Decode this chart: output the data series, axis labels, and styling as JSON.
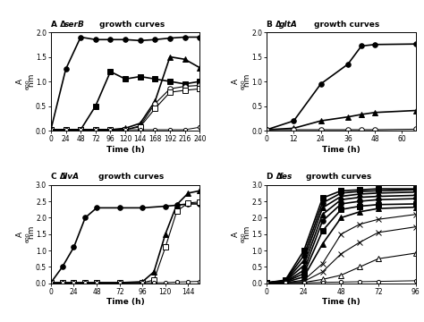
{
  "panel_A": {
    "letter": "A",
    "gene": "serB",
    "rest": " growth curves",
    "xlabel": "Time (h)",
    "ylabel": "A",
    "ylabel_sub": "600",
    "ylabel_rest": " nm",
    "xlim": [
      0,
      240
    ],
    "ylim": [
      0,
      2.0
    ],
    "yticks": [
      0.0,
      0.5,
      1.0,
      1.5,
      2.0
    ],
    "xticks": [
      0,
      24,
      48,
      72,
      96,
      120,
      144,
      168,
      192,
      216,
      240
    ],
    "series": [
      {
        "x": [
          0,
          24,
          48,
          72,
          96,
          120,
          144,
          168,
          192,
          216,
          240
        ],
        "y": [
          0.02,
          1.25,
          1.9,
          1.85,
          1.85,
          1.85,
          1.83,
          1.85,
          1.88,
          1.9,
          1.9
        ],
        "marker": "o",
        "ms": 4,
        "filled": true,
        "lw": 1.2
      },
      {
        "x": [
          0,
          24,
          48,
          72,
          96,
          120,
          144,
          168,
          192,
          216,
          240
        ],
        "y": [
          0.02,
          0.02,
          0.02,
          0.5,
          1.2,
          1.05,
          1.1,
          1.05,
          1.0,
          0.95,
          1.0
        ],
        "marker": "s",
        "ms": 4,
        "filled": true,
        "lw": 1.2
      },
      {
        "x": [
          0,
          24,
          48,
          72,
          96,
          120,
          144,
          168,
          192,
          216,
          240
        ],
        "y": [
          0.02,
          0.02,
          0.02,
          0.02,
          0.02,
          0.05,
          0.15,
          0.6,
          1.5,
          1.45,
          1.28
        ],
        "marker": "^",
        "ms": 4,
        "filled": true,
        "lw": 1.2
      },
      {
        "x": [
          0,
          24,
          48,
          72,
          96,
          120,
          144,
          168,
          192,
          216,
          240
        ],
        "y": [
          0.02,
          0.02,
          0.02,
          0.02,
          0.02,
          0.02,
          0.1,
          0.55,
          0.85,
          0.9,
          0.92
        ],
        "marker": "o",
        "ms": 4,
        "filled": false,
        "lw": 0.8
      },
      {
        "x": [
          0,
          24,
          48,
          72,
          96,
          120,
          144,
          168,
          192,
          216,
          240
        ],
        "y": [
          0.02,
          0.02,
          0.02,
          0.02,
          0.02,
          0.02,
          0.08,
          0.45,
          0.78,
          0.82,
          0.85
        ],
        "marker": "s",
        "ms": 4,
        "filled": false,
        "lw": 0.8
      },
      {
        "x": [
          0,
          24,
          48,
          72,
          96,
          120,
          144,
          168,
          192,
          216,
          240
        ],
        "y": [
          0.02,
          0.02,
          0.02,
          0.02,
          0.02,
          0.02,
          0.02,
          0.02,
          0.02,
          0.02,
          0.07
        ],
        "marker": "o",
        "ms": 3,
        "filled": false,
        "lw": 0.7
      }
    ]
  },
  "panel_B": {
    "letter": "B",
    "gene": "gltA",
    "rest": " growth curves",
    "xlabel": "Time (h)",
    "ylabel": "A",
    "ylabel_sub": "600",
    "ylabel_rest": " nm",
    "xlim": [
      0,
      66
    ],
    "ylim": [
      0,
      2.0
    ],
    "yticks": [
      0.0,
      0.5,
      1.0,
      1.5,
      2.0
    ],
    "xticks": [
      0,
      12,
      24,
      36,
      48,
      60
    ],
    "series": [
      {
        "x": [
          0,
          12,
          24,
          36,
          42,
          48,
          66
        ],
        "y": [
          0.02,
          0.2,
          0.95,
          1.35,
          1.72,
          1.75,
          1.76
        ],
        "marker": "o",
        "ms": 4,
        "filled": true,
        "lw": 1.2
      },
      {
        "x": [
          0,
          12,
          24,
          36,
          42,
          48,
          66
        ],
        "y": [
          0.02,
          0.05,
          0.2,
          0.28,
          0.33,
          0.37,
          0.41
        ],
        "marker": "^",
        "ms": 4,
        "filled": true,
        "lw": 1.2
      },
      {
        "x": [
          0,
          12,
          24,
          36,
          42,
          48,
          66
        ],
        "y": [
          0.02,
          0.02,
          0.02,
          0.02,
          0.02,
          0.02,
          0.03
        ],
        "marker": "o",
        "ms": 4,
        "filled": false,
        "lw": 0.8
      }
    ]
  },
  "panel_C": {
    "letter": "C",
    "gene": "ilvA",
    "rest": " growth curves",
    "xlabel": "Time (h)",
    "ylabel": "A",
    "ylabel_sub": "600",
    "ylabel_rest": " nm",
    "xlim": [
      0,
      156
    ],
    "ylim": [
      0,
      3.0
    ],
    "yticks": [
      0.0,
      0.5,
      1.0,
      1.5,
      2.0,
      2.5,
      3.0
    ],
    "xticks": [
      0,
      24,
      48,
      72,
      96,
      120,
      144
    ],
    "series": [
      {
        "x": [
          0,
          12,
          24,
          36,
          48,
          72,
          96,
          120,
          132,
          144,
          156
        ],
        "y": [
          0.02,
          0.5,
          1.1,
          2.0,
          2.3,
          2.3,
          2.3,
          2.35,
          2.38,
          2.42,
          2.42
        ],
        "marker": "o",
        "ms": 4,
        "filled": true,
        "lw": 1.2
      },
      {
        "x": [
          0,
          12,
          24,
          36,
          48,
          72,
          96,
          108,
          120,
          132,
          144,
          156
        ],
        "y": [
          0.02,
          0.02,
          0.02,
          0.02,
          0.02,
          0.02,
          0.05,
          0.35,
          1.5,
          2.4,
          2.75,
          2.82
        ],
        "marker": "^",
        "ms": 4,
        "filled": true,
        "lw": 1.2
      },
      {
        "x": [
          0,
          12,
          24,
          36,
          48,
          72,
          96,
          108,
          120,
          132,
          144,
          156
        ],
        "y": [
          0.02,
          0.02,
          0.02,
          0.02,
          0.02,
          0.02,
          0.02,
          0.1,
          1.1,
          2.2,
          2.45,
          2.48
        ],
        "marker": "s",
        "ms": 4,
        "filled": false,
        "lw": 0.8
      },
      {
        "x": [
          0,
          12,
          24,
          36,
          48,
          72,
          96,
          108,
          120,
          132,
          144,
          156
        ],
        "y": [
          0.02,
          0.02,
          0.02,
          0.02,
          0.02,
          0.02,
          0.02,
          0.02,
          0.02,
          0.04,
          0.05,
          0.06
        ],
        "marker": "o",
        "ms": 3,
        "filled": false,
        "lw": 0.7
      }
    ]
  },
  "panel_D": {
    "letter": "D",
    "gene": "fes",
    "rest": " growth curves",
    "xlabel": "Time (h)",
    "ylabel": "A",
    "ylabel_sub": "600",
    "ylabel_rest": " nm",
    "xlim": [
      0,
      96
    ],
    "ylim": [
      0,
      3.0
    ],
    "yticks": [
      0.0,
      0.5,
      1.0,
      1.5,
      2.0,
      2.5,
      3.0
    ],
    "xticks": [
      0,
      24,
      48,
      72,
      96
    ],
    "series": [
      {
        "x": [
          0,
          12,
          24,
          36,
          48,
          60,
          72,
          96
        ],
        "y": [
          0.02,
          0.1,
          1.0,
          2.6,
          2.82,
          2.85,
          2.88,
          2.88
        ],
        "marker": "s",
        "ms": 4,
        "filled": true,
        "lw": 1.2
      },
      {
        "x": [
          0,
          12,
          24,
          36,
          48,
          60,
          72,
          96
        ],
        "y": [
          0.02,
          0.08,
          0.85,
          2.45,
          2.75,
          2.8,
          2.82,
          2.85
        ],
        "marker": "o",
        "ms": 4,
        "filled": true,
        "lw": 1.2
      },
      {
        "x": [
          0,
          12,
          24,
          36,
          48,
          60,
          72,
          96
        ],
        "y": [
          0.02,
          0.07,
          0.7,
          2.3,
          2.65,
          2.72,
          2.75,
          2.78
        ],
        "marker": "^",
        "ms": 4,
        "filled": true,
        "lw": 1.2
      },
      {
        "x": [
          0,
          12,
          24,
          36,
          48,
          60,
          72,
          96
        ],
        "y": [
          0.02,
          0.06,
          0.55,
          2.1,
          2.55,
          2.62,
          2.65,
          2.68
        ],
        "marker": "^",
        "ms": 4,
        "filled": true,
        "lw": 1.2
      },
      {
        "x": [
          0,
          12,
          24,
          36,
          48,
          60,
          72,
          96
        ],
        "y": [
          0.02,
          0.05,
          0.4,
          1.9,
          2.42,
          2.5,
          2.55,
          2.58
        ],
        "marker": "o",
        "ms": 4,
        "filled": true,
        "lw": 1.2
      },
      {
        "x": [
          0,
          12,
          24,
          36,
          48,
          60,
          72,
          96
        ],
        "y": [
          0.02,
          0.04,
          0.3,
          1.6,
          2.25,
          2.35,
          2.4,
          2.42
        ],
        "marker": "s",
        "ms": 4,
        "filled": true,
        "lw": 1.2
      },
      {
        "x": [
          0,
          12,
          24,
          36,
          48,
          60,
          72,
          96
        ],
        "y": [
          0.02,
          0.03,
          0.2,
          1.2,
          2.0,
          2.18,
          2.28,
          2.32
        ],
        "marker": "^",
        "ms": 4,
        "filled": true,
        "lw": 1.2
      },
      {
        "x": [
          0,
          12,
          24,
          36,
          48,
          60,
          72,
          96
        ],
        "y": [
          0.02,
          0.02,
          0.1,
          0.6,
          1.5,
          1.8,
          1.95,
          2.1
        ],
        "marker": "x",
        "ms": 4,
        "filled": false,
        "lw": 0.8
      },
      {
        "x": [
          0,
          12,
          24,
          36,
          48,
          60,
          72,
          96
        ],
        "y": [
          0.02,
          0.02,
          0.06,
          0.35,
          0.9,
          1.25,
          1.55,
          1.72
        ],
        "marker": "x",
        "ms": 4,
        "filled": false,
        "lw": 0.8
      },
      {
        "x": [
          0,
          12,
          24,
          36,
          48,
          60,
          72,
          96
        ],
        "y": [
          0.02,
          0.02,
          0.03,
          0.12,
          0.25,
          0.5,
          0.75,
          0.92
        ],
        "marker": "^",
        "ms": 4,
        "filled": false,
        "lw": 0.8
      },
      {
        "x": [
          0,
          12,
          24,
          36,
          48,
          60,
          72,
          96
        ],
        "y": [
          0.02,
          0.02,
          0.02,
          0.03,
          0.04,
          0.05,
          0.06,
          0.08
        ],
        "marker": "o",
        "ms": 3,
        "filled": false,
        "lw": 0.7
      }
    ]
  }
}
